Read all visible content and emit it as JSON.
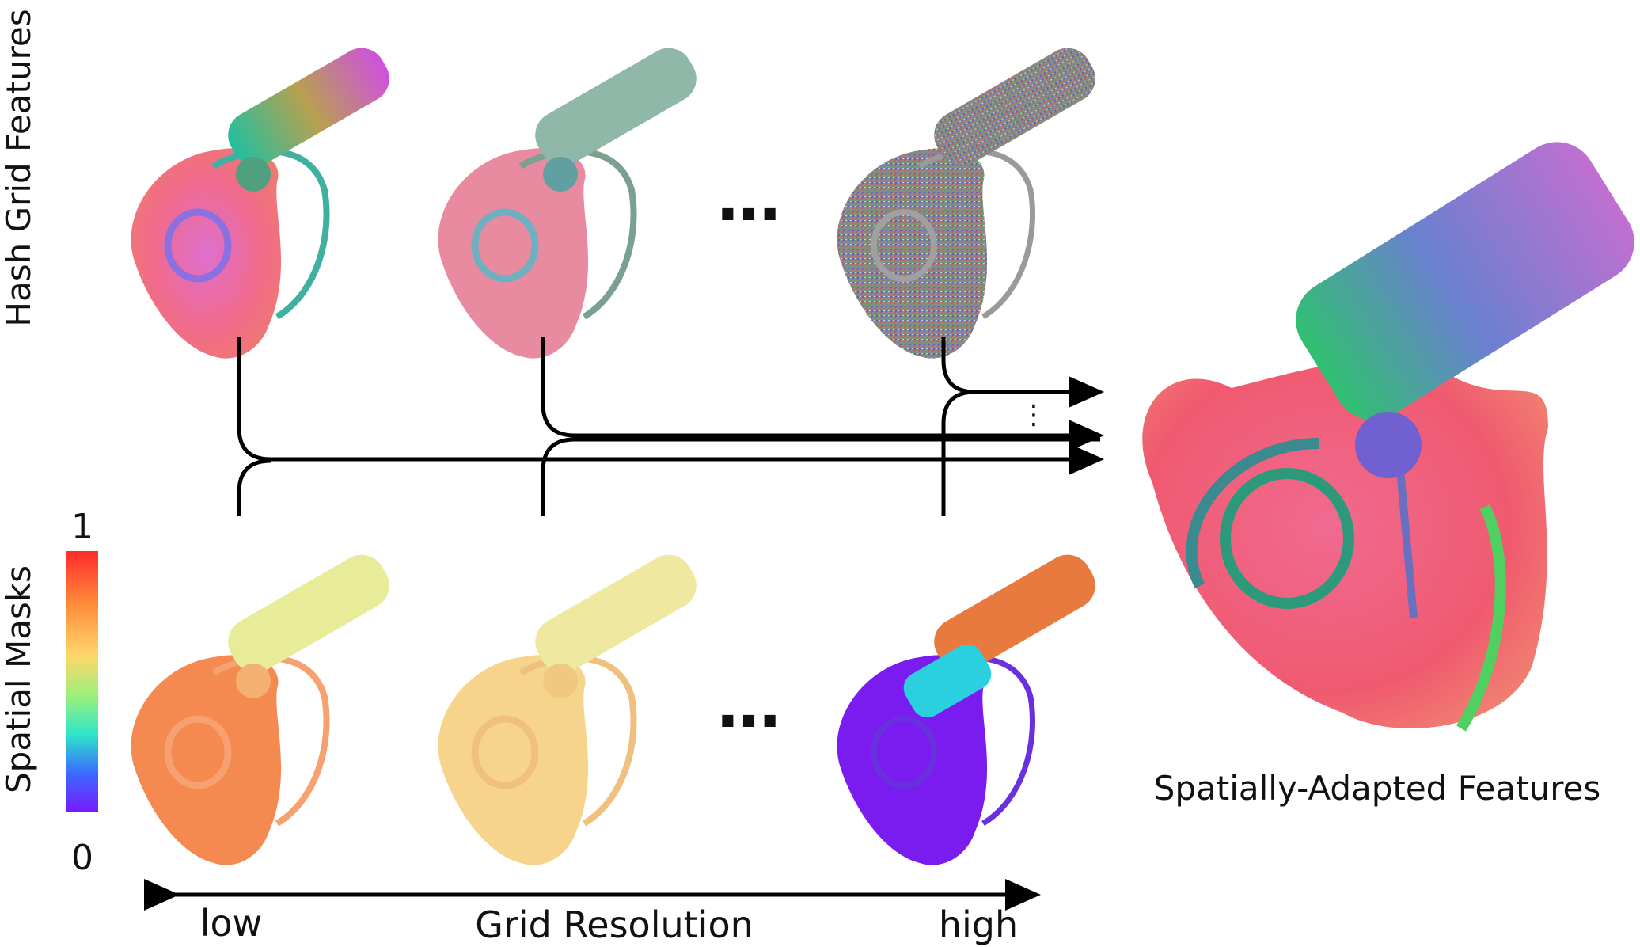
{
  "row_labels": {
    "top": "Hash Grid Features",
    "bottom": "Spatial Masks"
  },
  "colorbar": {
    "max_label": "1",
    "min_label": "0",
    "colors": [
      "#ff2b2b",
      "#ff8a3a",
      "#ffd66b",
      "#9ff07a",
      "#2fe6c8",
      "#3a6bff",
      "#7a18ff"
    ]
  },
  "ellipsis": "…",
  "vertical_ellipsis": "⋮",
  "output_label": "Spatially-Adapted Features",
  "axis": {
    "left": "low",
    "center": "Grid Resolution",
    "right": "high"
  }
}
